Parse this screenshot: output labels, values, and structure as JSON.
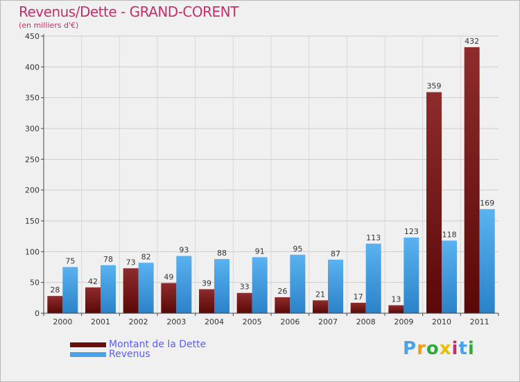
{
  "title": "Revenus/Dette - GRAND-CORENT",
  "subtitle": "(en milliers d'€)",
  "colors": {
    "dette": "#7a1818",
    "revenus": "#4aa3e6",
    "title": "#c0306a",
    "legend_text": "#5a5aff"
  },
  "chart_data": {
    "type": "bar",
    "title": "Revenus/Dette - GRAND-CORENT",
    "ylabel": "(en milliers d'€)",
    "xlabel": "",
    "ylim": [
      0,
      450
    ],
    "yticks": [
      0,
      50,
      100,
      150,
      200,
      250,
      300,
      350,
      400,
      450
    ],
    "grid": true,
    "categories": [
      "2000",
      "2001",
      "2002",
      "2003",
      "2004",
      "2005",
      "2006",
      "2007",
      "2008",
      "2009",
      "2010",
      "2011"
    ],
    "series": [
      {
        "name": "Montant de la Dette",
        "values": [
          28,
          42,
          73,
          49,
          39,
          33,
          26,
          21,
          17,
          13,
          359,
          432
        ]
      },
      {
        "name": "Revenus",
        "values": [
          75,
          78,
          82,
          93,
          88,
          91,
          95,
          87,
          113,
          123,
          118,
          169
        ]
      }
    ],
    "legend_position": "bottom-left"
  },
  "legend": {
    "items": [
      {
        "label": "Montant de la Dette",
        "color": "#7a1818"
      },
      {
        "label": "Revenus",
        "color": "#4aa3e6"
      }
    ]
  },
  "logo": {
    "letters": [
      "P",
      "r",
      "o",
      "x",
      "i",
      "t",
      "i"
    ],
    "colors": [
      "#4aa3e6",
      "#f39c12",
      "#2eaa3b",
      "#e6c000",
      "#c0306a",
      "#4aa3e6",
      "#2eaa3b"
    ]
  }
}
